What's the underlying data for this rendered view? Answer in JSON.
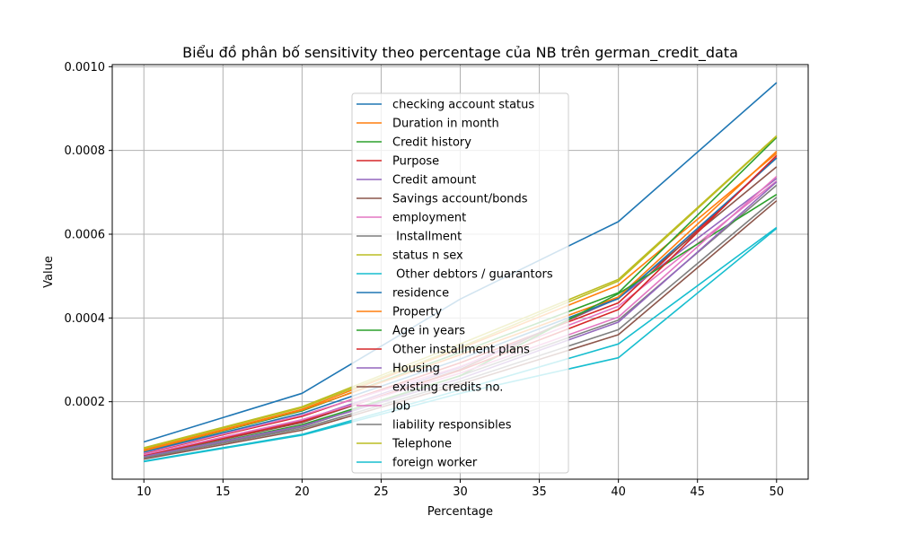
{
  "chart_data": {
    "type": "line",
    "title": "Biểu đồ phân bố sensitivity theo percentage của NB trên german_credit_data",
    "xlabel": "Percentage",
    "ylabel": "Value",
    "x": [
      10,
      20,
      30,
      40,
      50
    ],
    "xticks": [
      10,
      15,
      20,
      25,
      30,
      35,
      40,
      45,
      50
    ],
    "xtick_labels": [
      "10",
      "15",
      "20",
      "25",
      "30",
      "35",
      "40",
      "45",
      "50"
    ],
    "xlim": [
      8,
      52
    ],
    "yticks": [
      0.0002,
      0.0004,
      0.0006,
      0.0008,
      0.001
    ],
    "ytick_labels": [
      "0.0002",
      "0.0004",
      "0.0006",
      "0.0008",
      "0.0010"
    ],
    "ylim": [
      1.5e-05,
      0.001005
    ],
    "grid": true,
    "legend_position": "center",
    "series": [
      {
        "name": "checking account status",
        "color": "#1f77b4",
        "values": [
          0.000104,
          0.00022,
          0.000445,
          0.00063,
          0.000962
        ]
      },
      {
        "name": "Duration in month",
        "color": "#ff7f0e",
        "values": [
          8.5e-05,
          0.000182,
          0.000327,
          0.000478,
          0.000793
        ]
      },
      {
        "name": "Credit history",
        "color": "#2ca02c",
        "values": [
          8.2e-05,
          0.000178,
          0.000318,
          0.00046,
          0.000831
        ]
      },
      {
        "name": "Purpose",
        "color": "#d62728",
        "values": [
          7.7e-05,
          0.000165,
          0.000293,
          0.000436,
          0.000783
        ]
      },
      {
        "name": "Credit amount",
        "color": "#9467bd",
        "values": [
          7.3e-05,
          0.000155,
          0.000282,
          0.000447,
          0.000733
        ]
      },
      {
        "name": "Savings account/bonds",
        "color": "#8c564b",
        "values": [
          7e-05,
          0.00015,
          0.000277,
          0.00045,
          0.000761
        ]
      },
      {
        "name": "employment",
        "color": "#e377c2",
        "values": [
          7.8e-05,
          0.000168,
          0.000284,
          0.000428,
          0.000727
        ]
      },
      {
        "name": " Installment",
        "color": "#7f7f7f",
        "values": [
          6.5e-05,
          0.00014,
          0.000262,
          0.000395,
          0.000717
        ]
      },
      {
        "name": "status n sex",
        "color": "#bcbd22",
        "values": [
          9e-05,
          0.000188,
          0.000338,
          0.000492,
          0.000835
        ]
      },
      {
        "name": " Other debtors / guarantors",
        "color": "#17becf",
        "values": [
          5.8e-05,
          0.000122,
          0.000228,
          0.000338,
          0.000616
        ]
      },
      {
        "name": "residence",
        "color": "#1f77b4",
        "values": [
          8e-05,
          0.000172,
          0.000302,
          0.000446,
          0.000782
        ]
      },
      {
        "name": "Property",
        "color": "#ff7f0e",
        "values": [
          8.3e-05,
          0.00018,
          0.000312,
          0.00045,
          0.000798
        ]
      },
      {
        "name": "Age in years",
        "color": "#2ca02c",
        "values": [
          6.8e-05,
          0.000145,
          0.000262,
          0.000458,
          0.000695
        ]
      },
      {
        "name": "Other installment plans",
        "color": "#d62728",
        "values": [
          7.2e-05,
          0.000153,
          0.000275,
          0.00042,
          0.000788
        ]
      },
      {
        "name": "Housing",
        "color": "#9467bd",
        "values": [
          6.9e-05,
          0.000142,
          0.000255,
          0.00039,
          0.000725
        ]
      },
      {
        "name": "existing credits no.",
        "color": "#8c564b",
        "values": [
          6.3e-05,
          0.000132,
          0.000242,
          0.00036,
          0.00068
        ]
      },
      {
        "name": "Job",
        "color": "#e377c2",
        "values": [
          7.4e-05,
          0.000157,
          0.000268,
          0.000402,
          0.000738
        ]
      },
      {
        "name": "liability responsibles",
        "color": "#7f7f7f",
        "values": [
          6.6e-05,
          0.000136,
          0.000248,
          0.000372,
          0.000688
        ]
      },
      {
        "name": "Telephone",
        "color": "#bcbd22",
        "values": [
          8.8e-05,
          0.000186,
          0.00033,
          0.000488,
          0.000834
        ]
      },
      {
        "name": "foreign worker",
        "color": "#17becf",
        "values": [
          5.7e-05,
          0.00012,
          0.00022,
          0.000305,
          0.000614
        ]
      }
    ]
  }
}
